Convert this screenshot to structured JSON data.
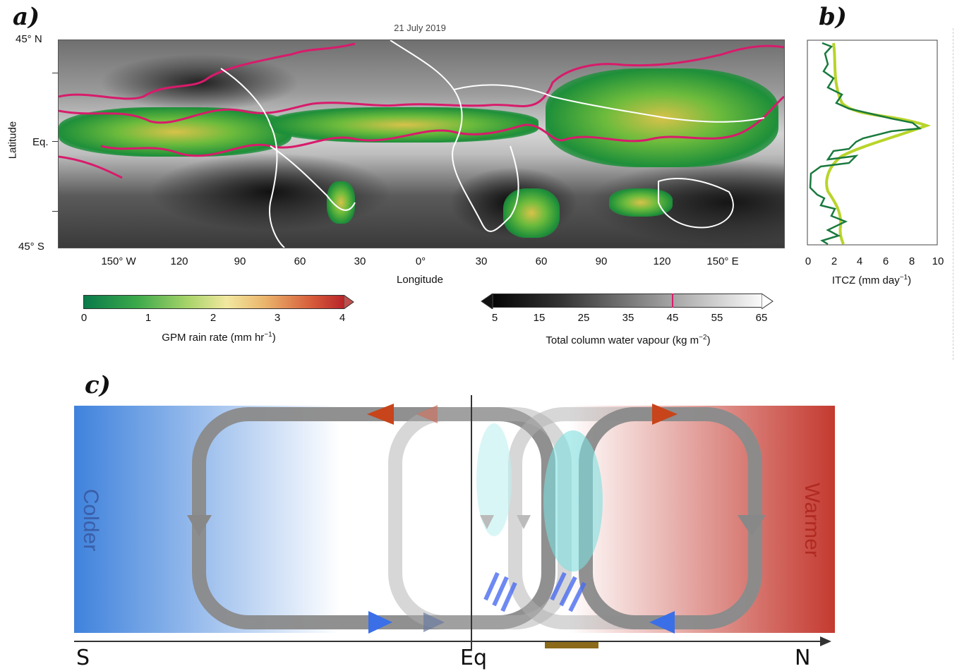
{
  "panel_a": {
    "label": "a)",
    "map_title": "21 July 2019",
    "lat_ticks": [
      "45° N",
      "Eq.",
      "45° S"
    ],
    "lat_label": "Latitude",
    "lon_ticks": [
      "150° W",
      "120",
      "90",
      "60",
      "30",
      "0°",
      "30",
      "60",
      "90",
      "120",
      "150° E"
    ],
    "lon_label": "Longitude",
    "rain_cb": {
      "ticks": [
        "0",
        "1",
        "2",
        "3",
        "4"
      ],
      "label": "GPM rain rate (mm hr",
      "unit_sup": "−1",
      "label_end": ")"
    },
    "tcwv_cb": {
      "ticks": [
        "5",
        "15",
        "25",
        "35",
        "45",
        "55",
        "65"
      ],
      "label": "Total column water vapour (kg m",
      "unit_sup": "−2",
      "label_end": ")"
    }
  },
  "panel_b": {
    "label": "b)",
    "xlabel": "ITCZ (mm day",
    "xlabel_sup": "−1",
    "xlabel_end": ")",
    "x_ticks": [
      "0",
      "2",
      "4",
      "6",
      "8",
      "10"
    ]
  },
  "panel_c": {
    "label": "c)",
    "left_text": "Colder",
    "right_text": "Warmer",
    "axis_labels": [
      "S",
      "Eq",
      "N"
    ]
  },
  "colors": {
    "itcz_contour": "#d81b6b",
    "dark_green": "#1a7a3e",
    "light_green": "#b9d42a",
    "arrow_red": "#c8441a",
    "arrow_blue": "#3a6fe8"
  }
}
